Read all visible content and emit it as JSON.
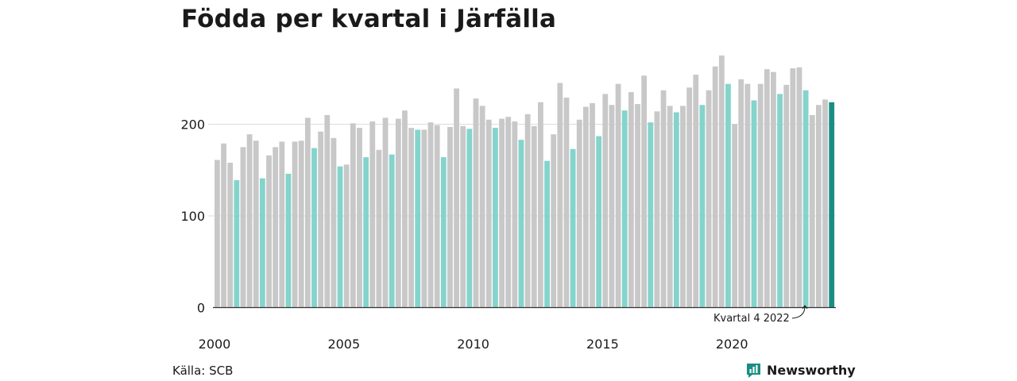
{
  "title": "Födda per kvartal i Järfälla",
  "source": "Källa: SCB",
  "brand": {
    "name": "Newsworthy",
    "icon": "bar-chart-logo-icon"
  },
  "colors": {
    "default": "#c8c8c8",
    "highlight_q4": "#84d4cc",
    "latest": "#1a8e82",
    "brand": "#1a8e82"
  },
  "chart_data": {
    "type": "bar",
    "x_start": "2000 Q1",
    "frequency": "quarter",
    "x_tick_labels": [
      "2000",
      "2005",
      "2010",
      "2015",
      "2020"
    ],
    "y_tick_labels": [
      "0",
      "100",
      "200"
    ],
    "ylim": [
      0,
      280
    ],
    "grid": true,
    "annotation": {
      "text": "Kvartal 4 2022",
      "target": "2022 Q4"
    },
    "highlight": "Q4 bars in light teal; latest bar in dark teal",
    "values": [
      161,
      179,
      158,
      139,
      175,
      189,
      182,
      141,
      166,
      175,
      181,
      146,
      181,
      182,
      207,
      174,
      192,
      210,
      185,
      154,
      156,
      201,
      196,
      164,
      203,
      172,
      207,
      167,
      206,
      215,
      196,
      194,
      194,
      202,
      199,
      164,
      197,
      239,
      198,
      195,
      228,
      220,
      205,
      196,
      206,
      208,
      203,
      183,
      211,
      198,
      224,
      160,
      189,
      245,
      229,
      173,
      205,
      219,
      223,
      187,
      233,
      221,
      244,
      215,
      235,
      222,
      253,
      202,
      214,
      237,
      220,
      213,
      220,
      240,
      254,
      221,
      237,
      263,
      275,
      244,
      200,
      249,
      244,
      226,
      244,
      260,
      257,
      233,
      243,
      261,
      262,
      237,
      210,
      221,
      227,
      224
    ]
  }
}
